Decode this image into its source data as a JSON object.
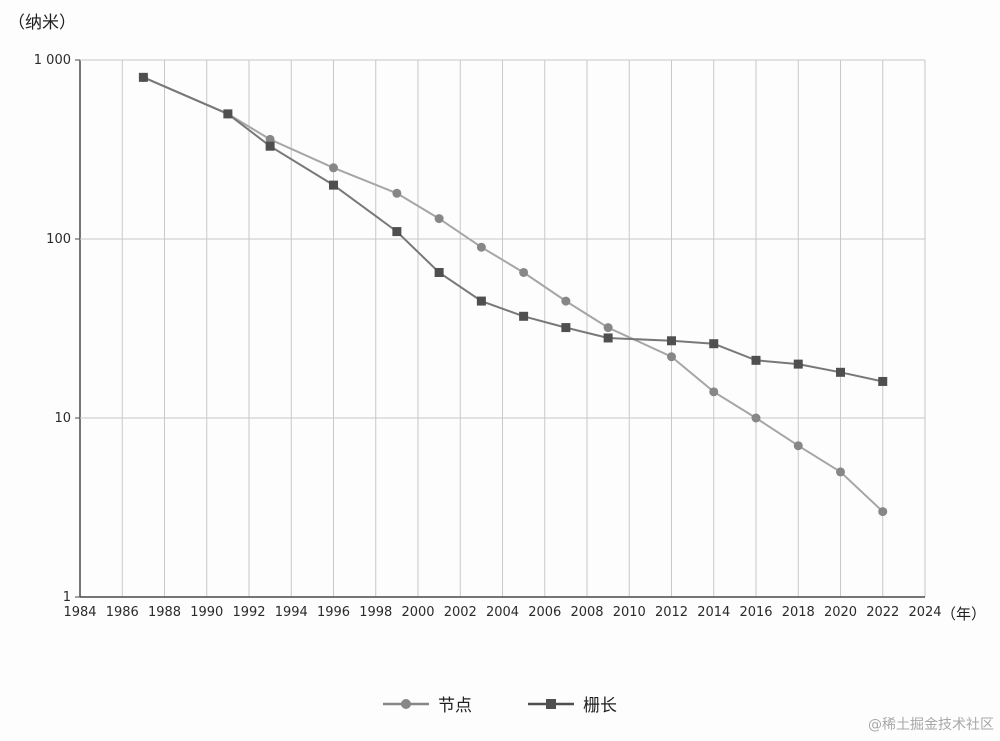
{
  "chart_data": {
    "type": "line",
    "title": "",
    "y_unit_label": "（纳米）",
    "x_unit_label": "（年）",
    "y_scale": "log",
    "ylim": [
      1,
      1000
    ],
    "xlim": [
      1984,
      2024
    ],
    "grid": true,
    "legend_position": "bottom",
    "y_ticks": [
      {
        "value": 1000,
        "label": "1 000"
      },
      {
        "value": 100,
        "label": "100"
      },
      {
        "value": 10,
        "label": "10"
      },
      {
        "value": 1,
        "label": "1"
      }
    ],
    "x_ticks": [
      1984,
      1986,
      1988,
      1990,
      1992,
      1994,
      1996,
      1998,
      2000,
      2002,
      2004,
      2006,
      2008,
      2010,
      2012,
      2014,
      2016,
      2018,
      2020,
      2022,
      2024
    ],
    "series": [
      {
        "name": "节点",
        "marker": "circle",
        "line_color": "#a6a6a6",
        "marker_color": "#878787",
        "points": [
          [
            1987,
            800
          ],
          [
            1991,
            500
          ],
          [
            1993,
            360
          ],
          [
            1996,
            250
          ],
          [
            1999,
            180
          ],
          [
            2001,
            130
          ],
          [
            2003,
            90
          ],
          [
            2005,
            65
          ],
          [
            2007,
            45
          ],
          [
            2009,
            32
          ],
          [
            2012,
            22
          ],
          [
            2014,
            14
          ],
          [
            2016,
            10
          ],
          [
            2018,
            7
          ],
          [
            2020,
            5
          ],
          [
            2022,
            3
          ]
        ]
      },
      {
        "name": "栅长",
        "marker": "square",
        "line_color": "#787878",
        "marker_color": "#4f4f4f",
        "points": [
          [
            1987,
            800
          ],
          [
            1991,
            500
          ],
          [
            1993,
            330
          ],
          [
            1996,
            200
          ],
          [
            1999,
            110
          ],
          [
            2001,
            65
          ],
          [
            2003,
            45
          ],
          [
            2005,
            37
          ],
          [
            2007,
            32
          ],
          [
            2009,
            28
          ],
          [
            2012,
            27
          ],
          [
            2014,
            26
          ],
          [
            2016,
            21
          ],
          [
            2018,
            20
          ],
          [
            2020,
            18
          ],
          [
            2022,
            16
          ]
        ]
      }
    ]
  },
  "watermark": "@稀土掘金技术社区"
}
